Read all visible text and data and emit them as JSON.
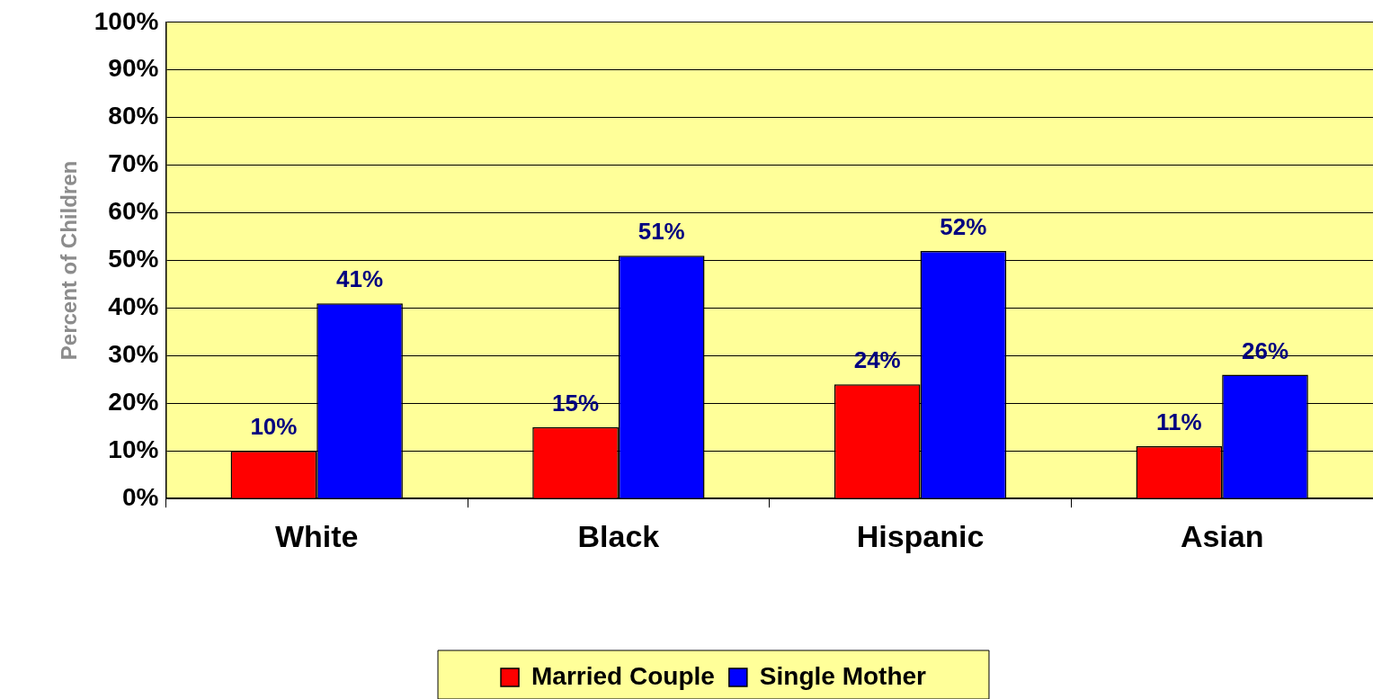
{
  "chart_data": {
    "type": "bar",
    "ylabel": "Percent of Children",
    "categories": [
      "White",
      "Black",
      "Hispanic",
      "Asian"
    ],
    "series": [
      {
        "name": "Married Couple",
        "color": "#ff0000",
        "values": [
          10,
          15,
          24,
          11
        ],
        "value_labels": [
          "10%",
          "15%",
          "24%",
          "11%"
        ]
      },
      {
        "name": "Single Mother",
        "color": "#0000ff",
        "values": [
          41,
          51,
          52,
          26
        ],
        "value_labels": [
          "41%",
          "51%",
          "52%",
          "26%"
        ]
      }
    ],
    "ylim": [
      0,
      100
    ],
    "yticks": [
      {
        "value": 0,
        "label": "0%"
      },
      {
        "value": 10,
        "label": "10%"
      },
      {
        "value": 20,
        "label": "20%"
      },
      {
        "value": 30,
        "label": "30%"
      },
      {
        "value": 40,
        "label": "40%"
      },
      {
        "value": 50,
        "label": "50%"
      },
      {
        "value": 60,
        "label": "60%"
      },
      {
        "value": 70,
        "label": "70%"
      },
      {
        "value": 80,
        "label": "80%"
      },
      {
        "value": 90,
        "label": "90%"
      },
      {
        "value": 100,
        "label": "100%"
      }
    ],
    "grid": "y",
    "legend": "bottom"
  }
}
